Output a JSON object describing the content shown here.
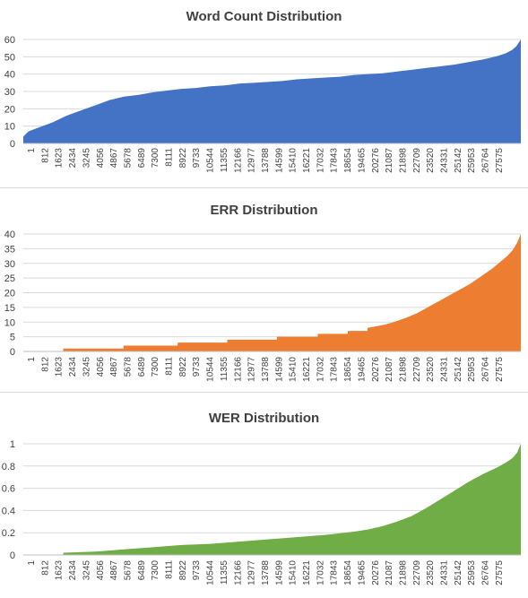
{
  "chart_data": [
    {
      "type": "area",
      "title": "Word Count Distribution",
      "xlabel": "",
      "ylabel": "",
      "ylim": [
        0,
        60
      ],
      "yticks": [
        "0",
        "10",
        "20",
        "30",
        "40",
        "50",
        "60"
      ],
      "xticks": [
        "1",
        "812",
        "1623",
        "2434",
        "3245",
        "4056",
        "4867",
        "5678",
        "6489",
        "7300",
        "8111",
        "8922",
        "9733",
        "10544",
        "11355",
        "12166",
        "12977",
        "13788",
        "14599",
        "15410",
        "16221",
        "17032",
        "17843",
        "18654",
        "19465",
        "20276",
        "21087",
        "21898",
        "22709",
        "23520",
        "24331",
        "25142",
        "25953",
        "26764",
        "27575"
      ],
      "xlim": [
        1,
        28060
      ],
      "grid": true,
      "color": "#4472C4",
      "series": [
        {
          "x": [
            1,
            300,
            812,
            1623,
            2434,
            3245,
            4056,
            4867,
            5678,
            6489,
            7300,
            8111,
            8922,
            9733,
            10544,
            11355,
            12166,
            12977,
            13788,
            14599,
            15410,
            16221,
            17032,
            17843,
            18654,
            19465,
            20276,
            21087,
            21898,
            22709,
            23520,
            24331,
            25142,
            25953,
            26764,
            27200,
            27575,
            27800,
            28060
          ],
          "y": [
            4,
            7,
            9,
            12,
            16,
            19,
            22,
            25,
            27,
            28,
            29.5,
            30.5,
            31.5,
            32,
            33,
            33.5,
            34.5,
            35,
            35.5,
            36,
            37,
            37.5,
            38,
            38.5,
            39.5,
            40,
            40.5,
            41.5,
            42.5,
            43.5,
            44.5,
            45.5,
            47,
            48.5,
            50.5,
            52,
            54,
            56,
            60
          ]
        }
      ]
    },
    {
      "type": "area",
      "title": "ERR Distribution",
      "xlabel": "",
      "ylabel": "",
      "ylim": [
        0,
        40
      ],
      "yticks": [
        "0",
        "5",
        "10",
        "15",
        "20",
        "25",
        "30",
        "35",
        "40"
      ],
      "xticks": [
        "1",
        "812",
        "1623",
        "2434",
        "3245",
        "4056",
        "4867",
        "5678",
        "6489",
        "7300",
        "8111",
        "8922",
        "9733",
        "10544",
        "11355",
        "12166",
        "12977",
        "13788",
        "14599",
        "15410",
        "16221",
        "17032",
        "17843",
        "18654",
        "19465",
        "20276",
        "21087",
        "21898",
        "22709",
        "23520",
        "24331",
        "25142",
        "25953",
        "26764",
        "27575"
      ],
      "xlim": [
        1,
        28060
      ],
      "grid": true,
      "color": "#ED7D31",
      "series": [
        {
          "x": [
            1,
            2250,
            2260,
            5650,
            5660,
            8700,
            8710,
            11500,
            11510,
            14300,
            14310,
            16600,
            16610,
            18300,
            18310,
            19400,
            19410,
            20300,
            20900,
            21600,
            22200,
            22800,
            23400,
            24000,
            24600,
            25200,
            25800,
            26400,
            26900,
            27300,
            27600,
            27850,
            28060
          ],
          "y": [
            0,
            0,
            1,
            1,
            2,
            2,
            3,
            3,
            4,
            4,
            5,
            5,
            6,
            6,
            7,
            7,
            8,
            9,
            10,
            11.5,
            13,
            15,
            17,
            19,
            21,
            23,
            25.5,
            28,
            30.5,
            32.5,
            34.5,
            37,
            40
          ]
        }
      ]
    },
    {
      "type": "area",
      "title": "WER Distribution",
      "xlabel": "",
      "ylabel": "",
      "ylim": [
        0,
        1
      ],
      "yticks": [
        "0",
        "0.2",
        "0.4",
        "0.6",
        "0.8",
        "1"
      ],
      "xticks": [
        "1",
        "812",
        "1623",
        "2434",
        "3245",
        "4056",
        "4867",
        "5678",
        "6489",
        "7300",
        "8111",
        "8922",
        "9733",
        "10544",
        "11355",
        "12166",
        "12977",
        "13788",
        "14599",
        "15410",
        "16221",
        "17032",
        "17843",
        "18654",
        "19465",
        "20276",
        "21087",
        "21898",
        "22709",
        "23520",
        "24331",
        "25142",
        "25953",
        "26764",
        "27575"
      ],
      "xlim": [
        1,
        28060
      ],
      "grid": true,
      "color": "#70AD47",
      "series": [
        {
          "x": [
            1,
            2250,
            2260,
            4056,
            5678,
            7300,
            8922,
            10544,
            12166,
            13788,
            15410,
            17032,
            18654,
            19465,
            20276,
            21087,
            21898,
            22709,
            23520,
            24331,
            25142,
            25953,
            26764,
            27200,
            27575,
            27850,
            28060
          ],
          "y": [
            0,
            0,
            0.02,
            0.03,
            0.05,
            0.07,
            0.09,
            0.1,
            0.12,
            0.14,
            0.16,
            0.18,
            0.21,
            0.23,
            0.26,
            0.3,
            0.35,
            0.42,
            0.5,
            0.58,
            0.66,
            0.73,
            0.79,
            0.83,
            0.87,
            0.92,
            1.0
          ]
        }
      ]
    }
  ]
}
